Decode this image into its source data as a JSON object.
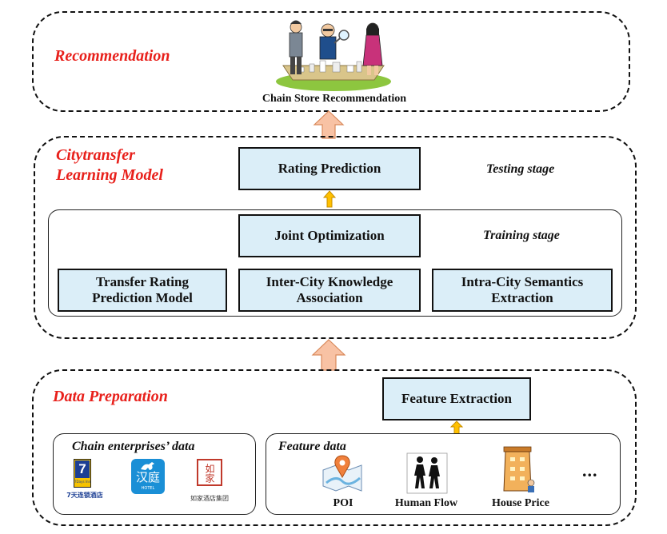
{
  "sections": {
    "recommendation": "Recommendation",
    "citytransfer_line1": "Citytransfer",
    "citytransfer_line2": "Learning Model",
    "data_preparation": "Data Preparation"
  },
  "recommendation": {
    "image_caption": "Chain Store Recommendation"
  },
  "model": {
    "rating_prediction": "Rating Prediction",
    "testing_stage": "Testing stage",
    "joint_optimization": "Joint Optimization",
    "training_stage": "Training stage",
    "transfer_rating_line1": "Transfer Rating",
    "transfer_rating_line2": "Prediction Model",
    "inter_city_line1": "Inter-City Knowledge",
    "inter_city_line2": "Association",
    "intra_city_line1": "Intra-City Semantics",
    "intra_city_line2": "Extraction"
  },
  "data_prep": {
    "feature_extraction": "Feature Extraction",
    "chain_panel_title": "Chain enterprises’ data",
    "feature_panel_title": "Feature data",
    "logos": {
      "seven_days_number": "7",
      "seven_days_sub": "7Days Inn",
      "seven_days_caption": "7天连锁酒店",
      "hanting_text": "汉庭",
      "hanting_sub": "HOTEL",
      "rujia_text": "如家",
      "rujia_caption": "如家酒店集团"
    },
    "features": {
      "poi": "POI",
      "human_flow": "Human Flow",
      "house_price": "House Price",
      "ellipsis": "..."
    }
  },
  "colors": {
    "section_title": "#e8201b",
    "box_fill": "#dbeef8",
    "arrow_fill": "#f8c2a4",
    "arrow_stroke": "#d98a5c",
    "small_arrow_fill": "#ffc000",
    "small_arrow_stroke": "#c89000"
  }
}
